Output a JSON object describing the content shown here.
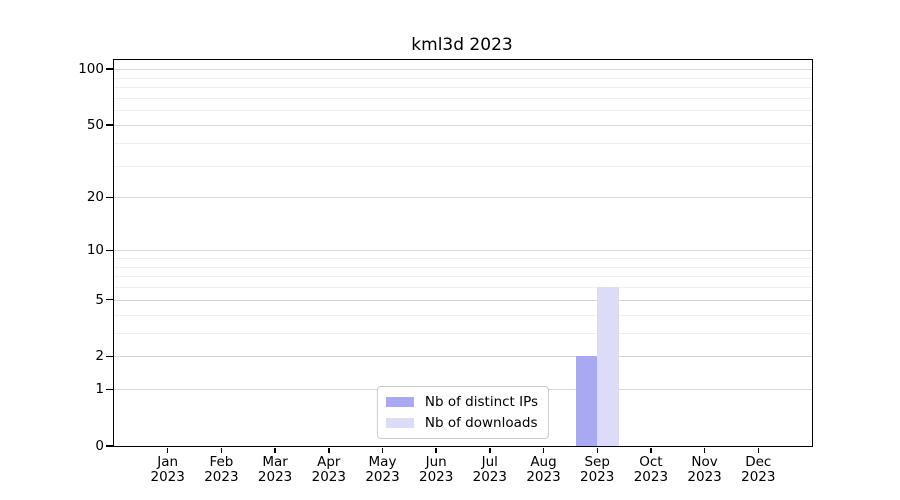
{
  "chart_data": {
    "type": "bar",
    "title": "kml3d 2023",
    "categories": [
      "Jan",
      "Feb",
      "Mar",
      "Apr",
      "May",
      "Jun",
      "Jul",
      "Aug",
      "Sep",
      "Oct",
      "Nov",
      "Dec"
    ],
    "year": "2023",
    "series": [
      {
        "name": "Nb of distinct IPs",
        "color": "#a9a9f2",
        "values": [
          0,
          0,
          0,
          0,
          0,
          0,
          0,
          0,
          2,
          0,
          0,
          0
        ]
      },
      {
        "name": "Nb of downloads",
        "color": "#dcdcf8",
        "values": [
          0,
          0,
          0,
          0,
          0,
          0,
          0,
          0,
          6,
          0,
          0,
          0
        ]
      }
    ],
    "xlabel": "",
    "ylabel": "",
    "yscale": "log1p",
    "ylim": [
      0,
      112
    ],
    "yticks": [
      0,
      1,
      2,
      5,
      10,
      20,
      50,
      100
    ],
    "minor_gridlines": [
      3,
      4,
      6,
      7,
      8,
      9,
      30,
      40,
      60,
      70,
      80,
      90
    ],
    "grid": "horizontal",
    "legend_position": "lower center",
    "colors": {
      "axis": "#000000",
      "major_grid": "#d6d6d6",
      "minor_grid": "#efefef",
      "background": "#ffffff"
    }
  }
}
